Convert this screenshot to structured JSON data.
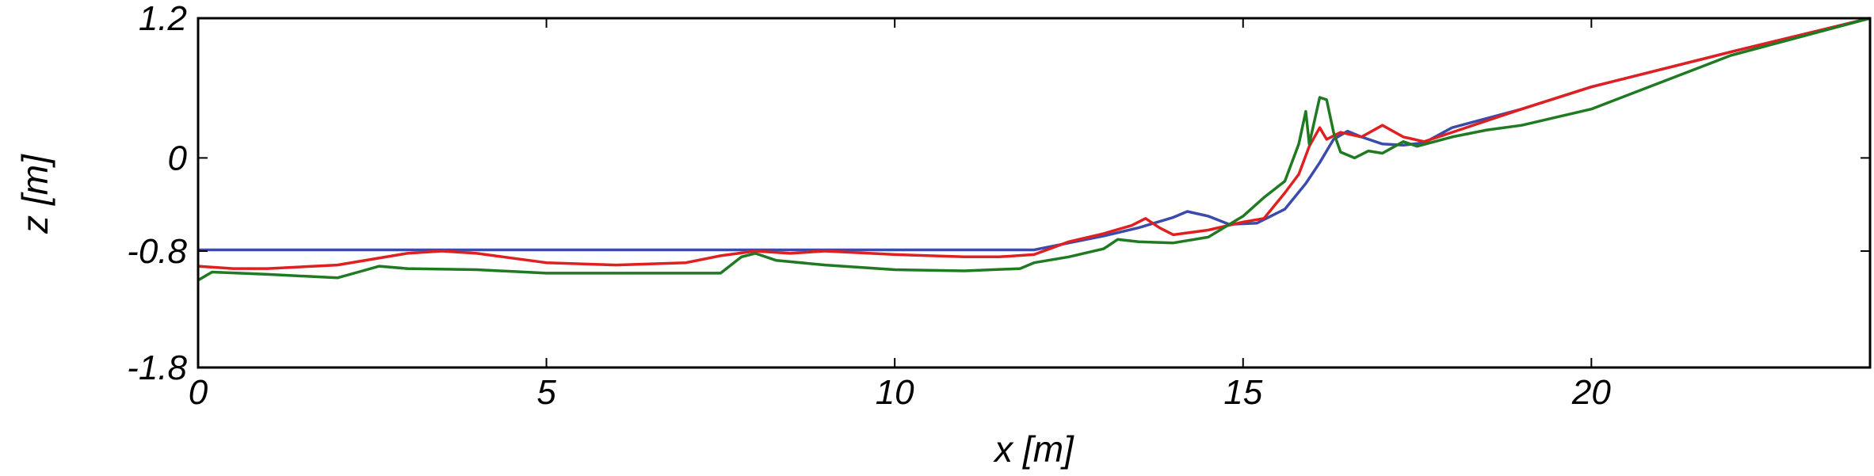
{
  "chart_data": {
    "type": "line",
    "title": "",
    "xlabel": "x [m]",
    "ylabel": "z [m]",
    "xlim": [
      0,
      24
    ],
    "ylim": [
      -1.8,
      1.2
    ],
    "xticks": [
      0,
      5,
      10,
      15,
      20
    ],
    "xtick_labels": [
      "0",
      "5",
      "10",
      "15",
      "20"
    ],
    "yticks": [
      1.2,
      0,
      -0.8,
      -1.8
    ],
    "ytick_labels": [
      "1.2",
      "0",
      "-0.8",
      "-1.8"
    ],
    "grid": false,
    "legend": "none",
    "series": [
      {
        "color": "#3b4bab",
        "x": [
          0,
          2,
          4,
          6,
          8,
          10,
          11,
          12,
          12.5,
          13,
          13.5,
          14,
          14.2,
          14.5,
          14.8,
          15.2,
          15.6,
          15.9,
          16.1,
          16.3,
          16.5,
          16.7,
          17,
          17.3,
          17.6,
          18,
          19,
          20,
          22,
          24
        ],
        "y": [
          -0.79,
          -0.79,
          -0.79,
          -0.79,
          -0.79,
          -0.79,
          -0.79,
          -0.79,
          -0.73,
          -0.67,
          -0.6,
          -0.51,
          -0.46,
          -0.5,
          -0.57,
          -0.56,
          -0.44,
          -0.22,
          -0.04,
          0.16,
          0.23,
          0.18,
          0.12,
          0.11,
          0.13,
          0.26,
          0.42,
          0.61,
          0.91,
          1.2
        ]
      },
      {
        "color": "#e02020",
        "x": [
          0,
          0.5,
          1,
          2,
          3,
          3.5,
          4,
          5,
          6,
          7,
          7.5,
          8,
          8.5,
          9,
          10,
          11,
          11.5,
          12,
          12.5,
          13,
          13.4,
          13.6,
          13.8,
          14,
          14.5,
          15,
          15.3,
          15.6,
          15.8,
          15.95,
          16.1,
          16.2,
          16.4,
          16.7,
          17,
          17.3,
          17.6,
          18,
          19,
          20,
          22,
          24
        ],
        "y": [
          -0.93,
          -0.95,
          -0.95,
          -0.92,
          -0.82,
          -0.8,
          -0.82,
          -0.9,
          -0.92,
          -0.9,
          -0.84,
          -0.8,
          -0.82,
          -0.8,
          -0.83,
          -0.85,
          -0.85,
          -0.83,
          -0.72,
          -0.65,
          -0.58,
          -0.52,
          -0.6,
          -0.66,
          -0.62,
          -0.55,
          -0.52,
          -0.3,
          -0.14,
          0.1,
          0.26,
          0.16,
          0.22,
          0.18,
          0.28,
          0.18,
          0.14,
          0.22,
          0.42,
          0.61,
          0.91,
          1.2
        ]
      },
      {
        "color": "#1f7a22",
        "x": [
          0,
          0.2,
          1,
          2,
          2.3,
          2.6,
          3,
          4,
          5,
          6,
          7,
          7.5,
          7.8,
          8,
          8.3,
          9,
          10,
          11,
          11.8,
          12,
          12.5,
          13,
          13.2,
          13.5,
          14,
          14.5,
          15,
          15.3,
          15.6,
          15.8,
          15.9,
          15.95,
          16.1,
          16.2,
          16.3,
          16.4,
          16.6,
          16.8,
          17,
          17.3,
          17.5,
          18,
          18.5,
          19,
          20,
          22,
          24
        ],
        "y": [
          -1.05,
          -0.98,
          -1.0,
          -1.03,
          -0.98,
          -0.93,
          -0.95,
          -0.96,
          -0.99,
          -0.99,
          -0.99,
          -0.99,
          -0.85,
          -0.82,
          -0.88,
          -0.92,
          -0.96,
          -0.97,
          -0.95,
          -0.9,
          -0.85,
          -0.78,
          -0.7,
          -0.72,
          -0.73,
          -0.68,
          -0.5,
          -0.34,
          -0.2,
          0.12,
          0.4,
          0.12,
          0.52,
          0.5,
          0.22,
          0.05,
          0.0,
          0.06,
          0.04,
          0.14,
          0.1,
          0.18,
          0.24,
          0.28,
          0.42,
          0.88,
          1.2
        ]
      }
    ]
  }
}
